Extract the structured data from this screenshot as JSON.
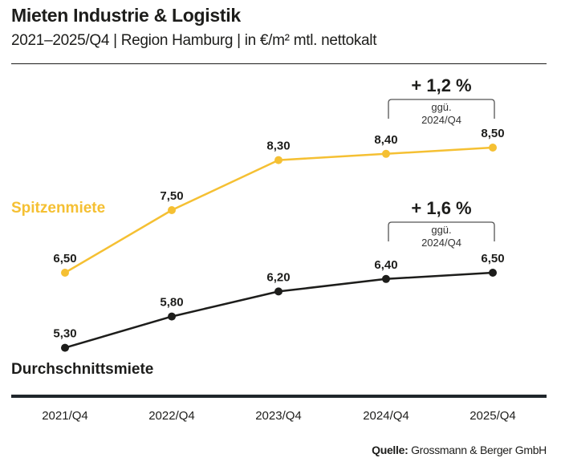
{
  "header": {
    "title": "Mieten Industrie & Logistik",
    "subtitle": "2021–2025/Q4 | Region Hamburg | in €/m² mtl. nettokalt"
  },
  "colors": {
    "spitzenmiete": "#f5c033",
    "durchschnittsmiete": "#1d1d1b",
    "axis": "#1f262b",
    "bracket": "#555555"
  },
  "chart_data": {
    "type": "line",
    "title": "Mieten Industrie & Logistik",
    "subtitle": "2021–2025/Q4 | Region Hamburg | in €/m² mtl. nettokalt",
    "xlabel": "",
    "ylabel": "€/m² mtl. nettokalt",
    "categories": [
      "2021/Q4",
      "2022/Q4",
      "2023/Q4",
      "2024/Q4",
      "2025/Q4"
    ],
    "series": [
      {
        "name": "Spitzenmiete",
        "values": [
          6.5,
          7.5,
          8.3,
          8.4,
          8.5
        ],
        "labels": [
          "6,50",
          "7,50",
          "8,30",
          "8,40",
          "8,50"
        ],
        "change": "+ 1,2 %",
        "change_note_line1": "ggü.",
        "change_note_line2": "2024/Q4"
      },
      {
        "name": "Durchschnittsmiete",
        "values": [
          5.3,
          5.8,
          6.2,
          6.4,
          6.5
        ],
        "labels": [
          "5,30",
          "5,80",
          "6,20",
          "6,40",
          "6,50"
        ],
        "change": "+ 1,6 %",
        "change_note_line1": "ggü.",
        "change_note_line2": "2024/Q4"
      }
    ],
    "ylim": [
      5.0,
      9.0
    ],
    "grid": false,
    "legend": "inline-left"
  },
  "source": {
    "label": "Quelle:",
    "text": "Grossmann & Berger GmbH"
  }
}
